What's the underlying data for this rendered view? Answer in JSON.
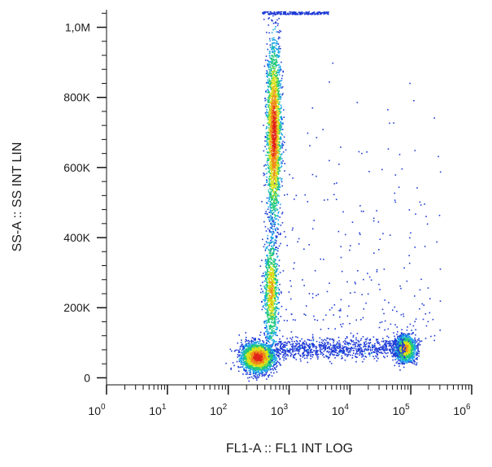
{
  "chart_data": {
    "type": "scatter",
    "title": "",
    "xlabel": "FL1-A :: FL1 INT LOG",
    "ylabel": "SS-A :: SS INT LIN",
    "x_scale": "log",
    "y_scale": "linear",
    "xlim": [
      1,
      1000000
    ],
    "ylim": [
      -20000,
      1050000
    ],
    "x_ticks": [
      {
        "base": "10",
        "exp": "0",
        "value": 1
      },
      {
        "base": "10",
        "exp": "1",
        "value": 10
      },
      {
        "base": "10",
        "exp": "2",
        "value": 100
      },
      {
        "base": "10",
        "exp": "3",
        "value": 1000
      },
      {
        "base": "10",
        "exp": "4",
        "value": 10000
      },
      {
        "base": "10",
        "exp": "5",
        "value": 100000
      },
      {
        "base": "10",
        "exp": "6",
        "value": 1000000
      }
    ],
    "y_ticks": [
      {
        "label": "0",
        "value": 0
      },
      {
        "label": "200K",
        "value": 200000
      },
      {
        "label": "400K",
        "value": 400000
      },
      {
        "label": "600K",
        "value": 600000
      },
      {
        "label": "800K",
        "value": 800000
      },
      {
        "label": "1,0M",
        "value": 1000000
      }
    ],
    "grid": false,
    "legend": "none",
    "colormap": [
      "#1f3bd6",
      "#1aa6e8",
      "#20c97a",
      "#d8e21a",
      "#f08a1c",
      "#e0231c"
    ],
    "populations": [
      {
        "center": [
          300,
          60000
        ],
        "spread_log10_x": 0.13,
        "spread_y": 20000,
        "weight": 1.0
      },
      {
        "center": [
          550,
          700000
        ],
        "spread_log10_x": 0.06,
        "spread_y": 130000,
        "weight": 0.9
      },
      {
        "center": [
          500,
          250000
        ],
        "spread_log10_x": 0.06,
        "spread_y": 80000,
        "weight": 0.35
      },
      {
        "center": [
          80000,
          85000
        ],
        "spread_log10_x": 0.08,
        "spread_y": 18000,
        "weight": 0.55
      }
    ]
  }
}
